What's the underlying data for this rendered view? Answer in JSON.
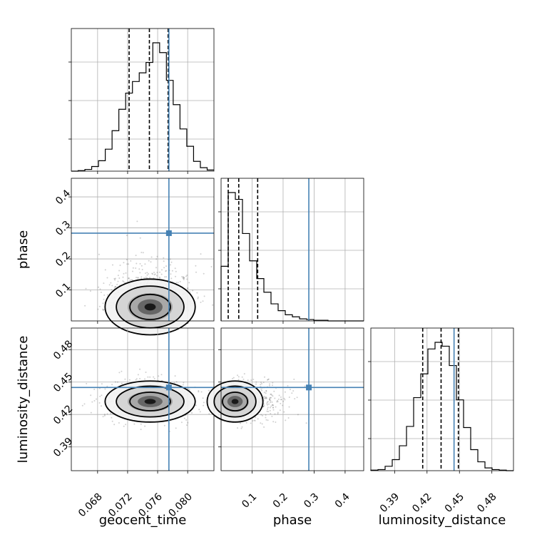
{
  "chart_data": {
    "type": "corner",
    "parameters": [
      "geocent_time",
      "phase",
      "luminosity_distance"
    ],
    "truths": {
      "geocent_time": 0.0775,
      "phase": 0.283,
      "luminosity_distance": 0.445
    },
    "quantiles": {
      "geocent_time": [
        0.0722,
        0.0749,
        0.0774
      ],
      "phase": [
        0.023,
        0.057,
        0.118
      ],
      "luminosity_distance": [
        0.416,
        0.433,
        0.449
      ]
    },
    "ranges": {
      "geocent_time": [
        0.0645,
        0.0835
      ],
      "phase": [
        0.0,
        0.46
      ],
      "luminosity_distance": [
        0.368,
        0.5
      ]
    },
    "ticks": {
      "geocent_time": [
        "0.068",
        "0.072",
        "0.076",
        "0.080"
      ],
      "phase": [
        "0.1",
        "0.2",
        "0.3",
        "0.4"
      ],
      "luminosity_distance": [
        "0.39",
        "0.42",
        "0.45",
        "0.48"
      ]
    },
    "histograms": {
      "geocent_time": [
        0,
        1,
        3,
        8,
        18,
        38,
        70,
        107,
        135,
        155,
        170,
        188,
        222,
        205,
        157,
        115,
        73,
        43,
        17,
        6,
        2
      ],
      "phase": [
        80,
        188,
        178,
        128,
        88,
        62,
        42,
        25,
        15,
        9,
        6,
        3,
        2,
        1,
        1,
        0,
        0,
        0,
        0,
        0
      ],
      "luminosity_distance": [
        1,
        2,
        8,
        20,
        45,
        80,
        132,
        175,
        220,
        232,
        225,
        190,
        128,
        78,
        38,
        16,
        5,
        2,
        1,
        0
      ]
    },
    "grid": true
  }
}
